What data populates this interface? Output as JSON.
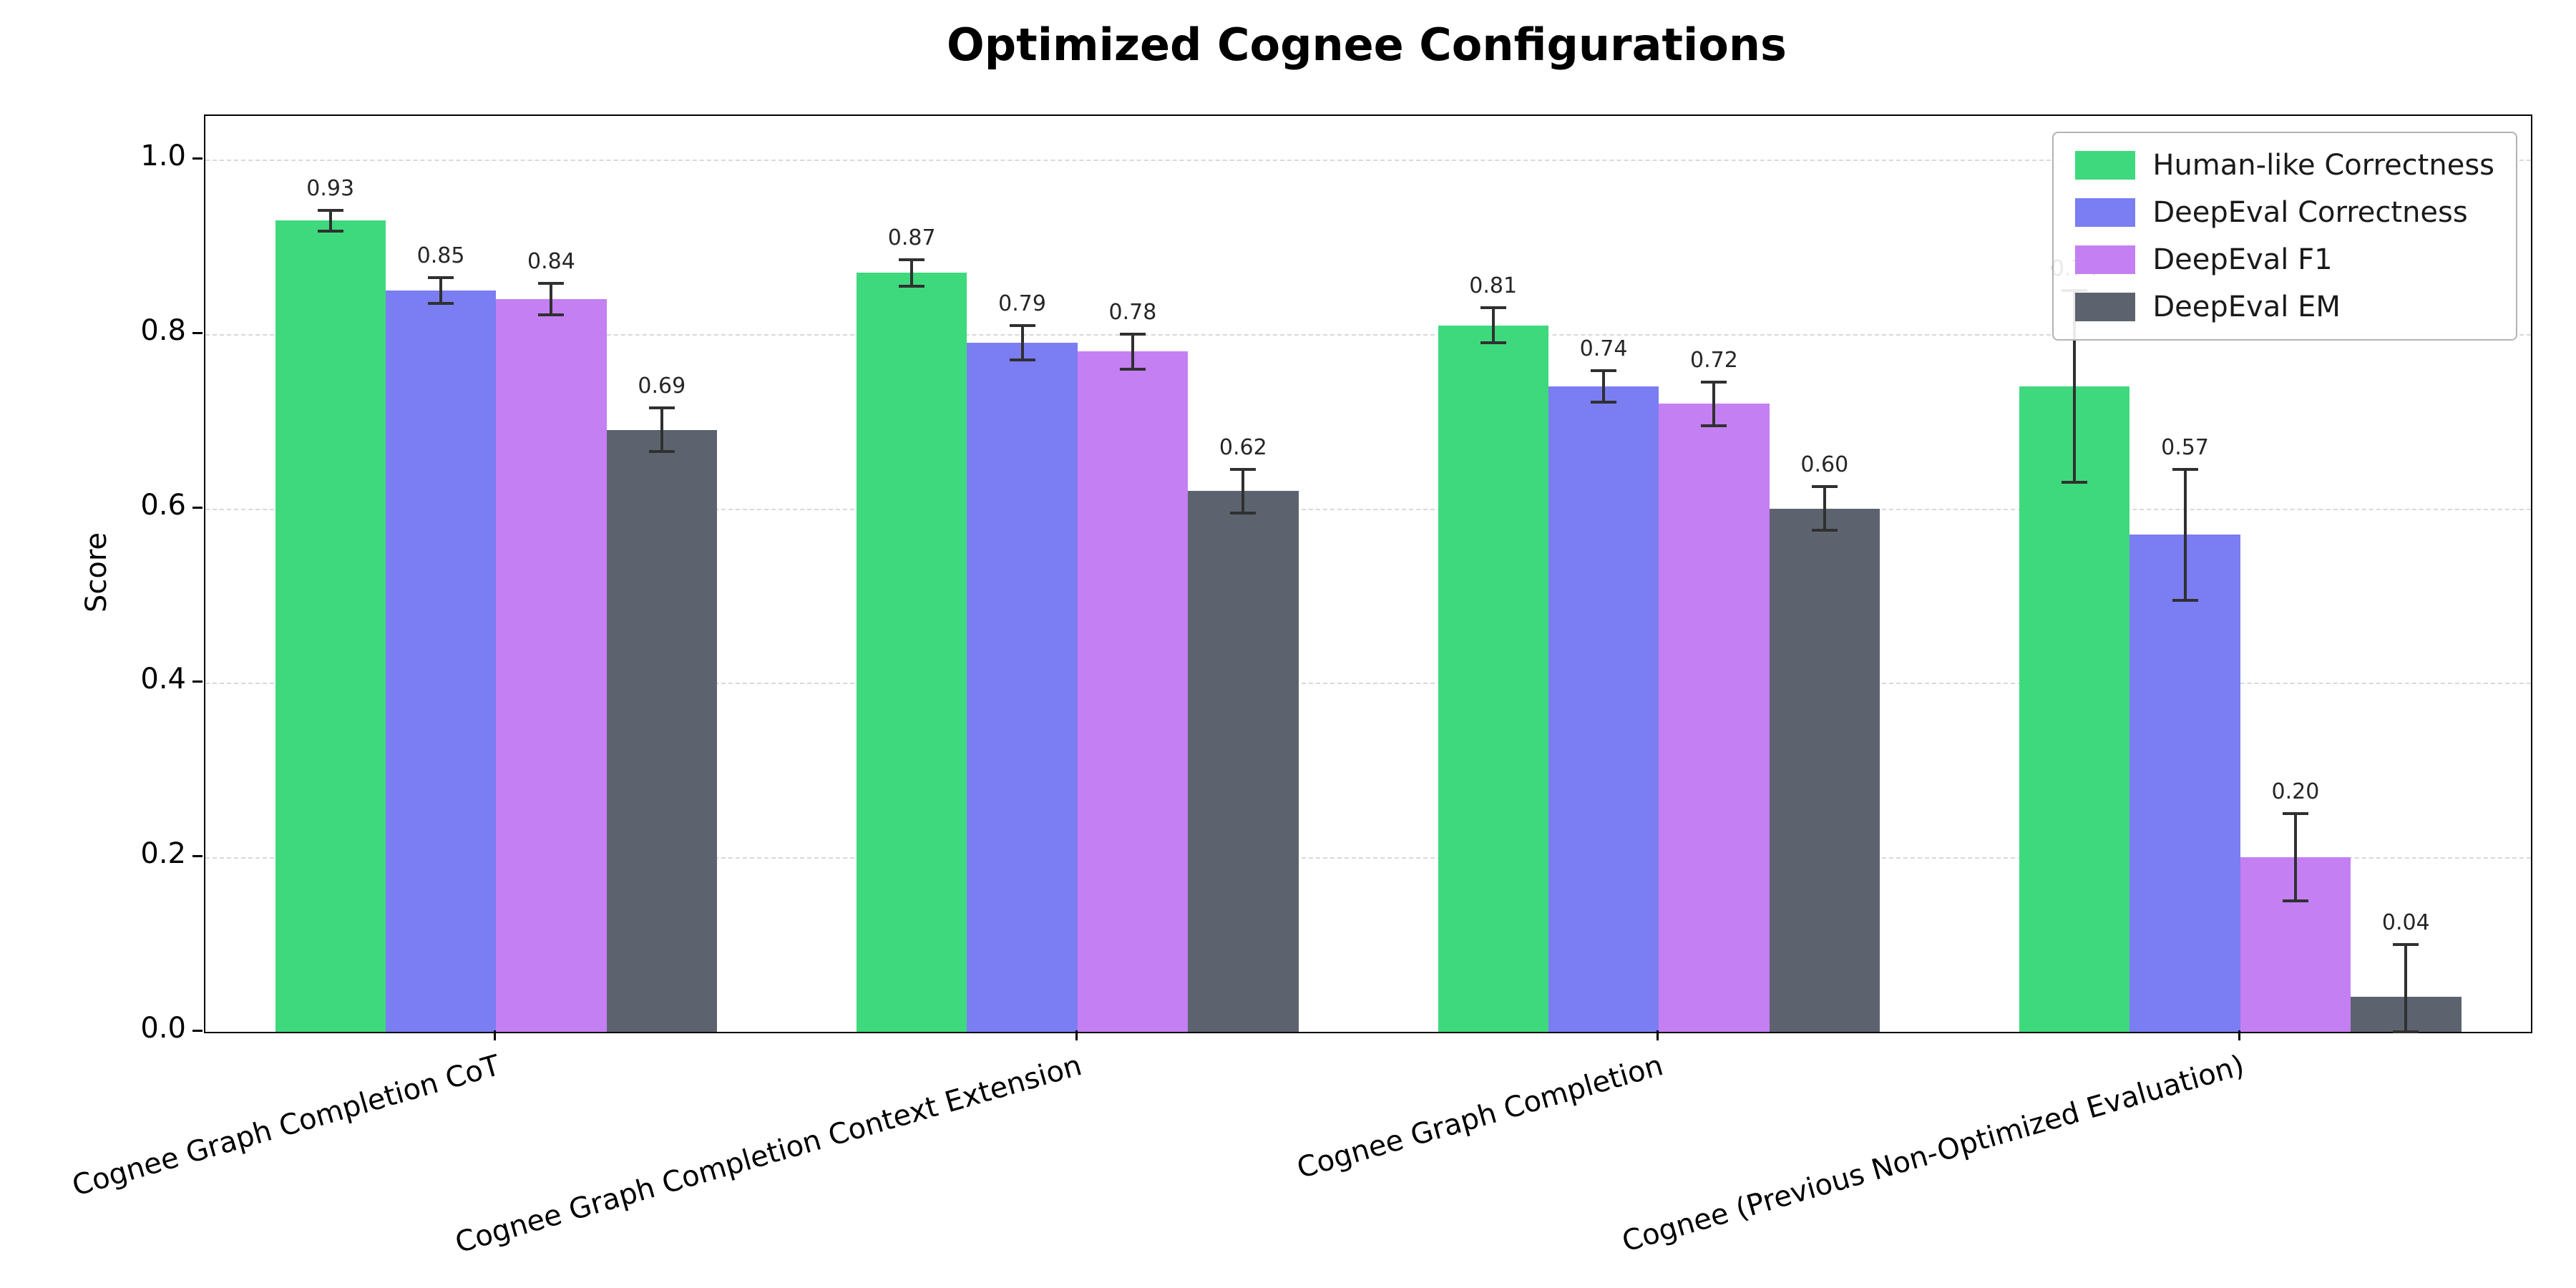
{
  "chart_data": {
    "type": "bar",
    "title": "Optimized Cognee Configurations",
    "xlabel": "",
    "ylabel": "Score",
    "ylim": [
      0,
      1.05
    ],
    "yticks": [
      0.0,
      0.2,
      0.4,
      0.6,
      0.8,
      1.0
    ],
    "ytick_labels": [
      "0.0",
      "0.2",
      "0.4",
      "0.6",
      "0.8",
      "1.0"
    ],
    "grid": "horizontal-dashed",
    "legend_position": "upper right",
    "categories": [
      "Cognee Graph Completion CoT",
      "Cognee Graph Completion Context Extension",
      "Cognee Graph Completion",
      "Cognee (Previous Non-Optimized Evaluation)"
    ],
    "series": [
      {
        "name": "Human-like Correctness",
        "color": "#3ed97c",
        "values": [
          0.93,
          0.87,
          0.81,
          0.74
        ],
        "errors": [
          0.012,
          0.015,
          0.02,
          0.11
        ]
      },
      {
        "name": "DeepEval Correctness",
        "color": "#7b7df2",
        "values": [
          0.85,
          0.79,
          0.74,
          0.57
        ],
        "errors": [
          0.015,
          0.02,
          0.018,
          0.075
        ]
      },
      {
        "name": "DeepEval F1",
        "color": "#c47ff2",
        "values": [
          0.84,
          0.78,
          0.72,
          0.2
        ],
        "errors": [
          0.018,
          0.02,
          0.025,
          0.05
        ]
      },
      {
        "name": "DeepEval EM",
        "color": "#5d636e",
        "values": [
          0.69,
          0.62,
          0.6,
          0.04
        ],
        "errors": [
          0.025,
          0.025,
          0.025,
          0.06
        ]
      }
    ],
    "error_bar_color": "#303030"
  }
}
